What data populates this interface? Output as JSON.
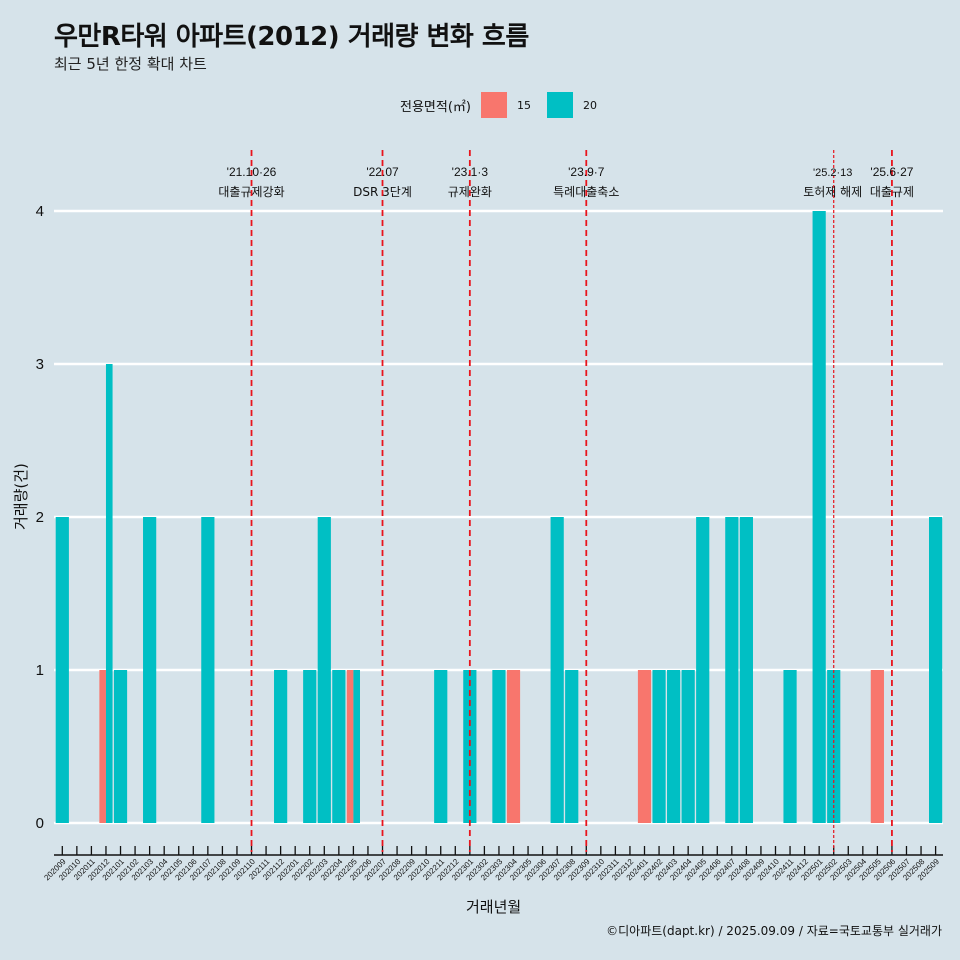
{
  "header": {
    "title": "우만R타워 아파트(2012) 거래량 변화 흐름",
    "subtitle": "최근 5년 한정 확대 차트"
  },
  "legend": {
    "title": "전용면적(㎡)",
    "items": [
      {
        "label": "15",
        "color": "#F8766D"
      },
      {
        "label": "20",
        "color": "#00BFC4"
      }
    ]
  },
  "footer": "©디아파트(dapt.kr) / 2025.09.09 / 자료=국토교통부 실거래가",
  "chart_data": {
    "type": "bar",
    "title": "우만R타워 아파트(2012) 거래량 변화 흐름",
    "subtitle": "최근 5년 한정 확대 차트",
    "xlabel": "거래년월",
    "ylabel": "거래량(건)",
    "ylim": [
      0,
      4
    ],
    "yticks": [
      0,
      1,
      2,
      3,
      4
    ],
    "grid": true,
    "legend_position": "top",
    "categories": [
      "202009",
      "202010",
      "202011",
      "202012",
      "202101",
      "202102",
      "202103",
      "202104",
      "202105",
      "202106",
      "202107",
      "202108",
      "202109",
      "202110",
      "202111",
      "202112",
      "202201",
      "202202",
      "202203",
      "202204",
      "202205",
      "202206",
      "202207",
      "202208",
      "202209",
      "202210",
      "202211",
      "202212",
      "202301",
      "202302",
      "202303",
      "202304",
      "202305",
      "202306",
      "202307",
      "202308",
      "202309",
      "202310",
      "202311",
      "202312",
      "202401",
      "202402",
      "202403",
      "202404",
      "202405",
      "202406",
      "202407",
      "202408",
      "202409",
      "202410",
      "202411",
      "202412",
      "202501",
      "202502",
      "202503",
      "202504",
      "202505",
      "202506",
      "202507",
      "202508",
      "202509"
    ],
    "series": [
      {
        "name": "15",
        "color": "#F8766D",
        "values": {
          "202012": 1,
          "202205": 1,
          "202304": 1,
          "202401": 1,
          "202505": 1
        }
      },
      {
        "name": "20",
        "color": "#00BFC4",
        "values": {
          "202009": 2,
          "202012": 3,
          "202101": 1,
          "202103": 2,
          "202107": 2,
          "202112": 1,
          "202202": 1,
          "202203": 2,
          "202204": 1,
          "202205": 1,
          "202211": 1,
          "202301": 1,
          "202303": 1,
          "202307": 2,
          "202308": 1,
          "202402": 1,
          "202403": 1,
          "202404": 1,
          "202405": 2,
          "202407": 2,
          "202408": 2,
          "202411": 1,
          "202501": 4,
          "202502": 1,
          "202509": 2
        }
      }
    ],
    "annotations": [
      {
        "month": "202110",
        "date": "'21.10·26",
        "text": "대출규제강화",
        "style": "dashed"
      },
      {
        "month": "202207",
        "date": "'22.07",
        "text": "DSR 3단계",
        "style": "dashed"
      },
      {
        "month": "202301",
        "date": "'23.1·3",
        "text": "규제완화",
        "style": "dashed"
      },
      {
        "month": "202309",
        "date": "'23.9·7",
        "text": "특례대출축소",
        "style": "dashed"
      },
      {
        "month": "202502",
        "date": "'25.2·13",
        "text": "토허제 해제",
        "style": "dotted"
      },
      {
        "month": "202506",
        "date": "'25.6·27",
        "text": "대출규제",
        "style": "dashed"
      }
    ]
  }
}
